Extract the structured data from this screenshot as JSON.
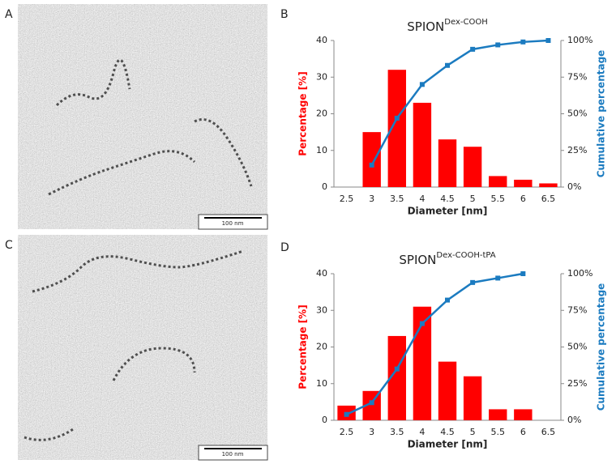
{
  "panel_labels": [
    "A",
    "B",
    "C",
    "D"
  ],
  "scale_bars": [
    "100 nm",
    "100 nm"
  ],
  "chart_data": [
    {
      "type": "bar",
      "title": "SPION",
      "title_sup": "Dex-COOH",
      "categories": [
        "2.5",
        "3",
        "3.5",
        "4",
        "4.5",
        "5",
        "5.5",
        "6",
        "6.5"
      ],
      "x_label": "Diameter [nm]",
      "y_label": "Percentage [%]",
      "y2_label": "Cumulative percentage",
      "series": [
        {
          "name": "Percentage [%]",
          "color": "#ff0000",
          "values": [
            0,
            15,
            32,
            23,
            13,
            11,
            3,
            2,
            1
          ]
        },
        {
          "name": "Cumulative percentage",
          "color": "#1b7bc0",
          "axis": "y2",
          "values": [
            null,
            15,
            47,
            70,
            83,
            94,
            97,
            99,
            100
          ]
        }
      ],
      "ylim": [
        0,
        40
      ],
      "yticks": [
        0,
        10,
        20,
        30,
        40
      ],
      "y2lim": [
        0,
        100
      ],
      "y2ticks": [
        {
          "value": 0,
          "label": "0%"
        },
        {
          "value": 25,
          "label": "25%"
        },
        {
          "value": 50,
          "label": "50%"
        },
        {
          "value": 75,
          "label": "75%"
        },
        {
          "value": 100,
          "label": "100%"
        }
      ]
    },
    {
      "type": "bar",
      "title": "SPION",
      "title_sup": "Dex-COOH-tPA",
      "categories": [
        "2.5",
        "3",
        "3.5",
        "4",
        "4.5",
        "5",
        "5.5",
        "6",
        "6.5"
      ],
      "x_label": "Diameter [nm]",
      "y_label": "Percentage [%]",
      "y2_label": "Cumulative percentage",
      "series": [
        {
          "name": "Percentage [%]",
          "color": "#ff0000",
          "values": [
            4,
            8,
            23,
            31,
            16,
            12,
            3,
            3,
            0
          ]
        },
        {
          "name": "Cumulative percentage",
          "color": "#1b7bc0",
          "axis": "y2",
          "values": [
            4,
            12,
            35,
            66,
            82,
            94,
            97,
            100,
            null
          ]
        }
      ],
      "ylim": [
        0,
        40
      ],
      "yticks": [
        0,
        10,
        20,
        30,
        40
      ],
      "y2lim": [
        0,
        100
      ],
      "y2ticks": [
        {
          "value": 0,
          "label": "0%"
        },
        {
          "value": 25,
          "label": "25%"
        },
        {
          "value": 50,
          "label": "50%"
        },
        {
          "value": 75,
          "label": "75%"
        },
        {
          "value": 100,
          "label": "100%"
        }
      ]
    }
  ]
}
